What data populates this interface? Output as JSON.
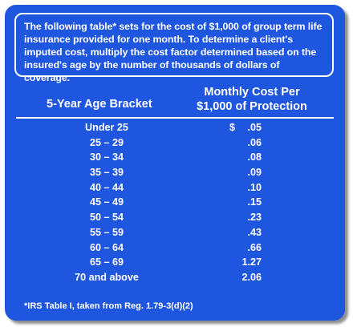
{
  "intro_text": "The following table* sets for the cost of $1,000 of group term life insurance provided for one month. To determine a client's imputed cost, multiply the cost factor determined based on the insured's age by the number of thousands of dollars of coverage.",
  "headers": {
    "age": "5-Year Age Bracket",
    "cost_line1": "Monthly Cost Per",
    "cost_line2": "$1,000 of Protection"
  },
  "currency_symbol": "$",
  "rows": [
    {
      "age": "Under 25",
      "cost": ".05"
    },
    {
      "age": "25 – 29",
      "cost": ".06"
    },
    {
      "age": "30 – 34",
      "cost": ".08"
    },
    {
      "age": "35 – 39",
      "cost": ".09"
    },
    {
      "age": "40 – 44",
      "cost": ".10"
    },
    {
      "age": "45 – 49",
      "cost": ".15"
    },
    {
      "age": "50 – 54",
      "cost": ".23"
    },
    {
      "age": "55 – 59",
      "cost": ".43"
    },
    {
      "age": "60 – 64",
      "cost": ".66"
    },
    {
      "age": "65 – 69",
      "cost": "1.27"
    },
    {
      "age": "70 and above",
      "cost": "2.06"
    }
  ],
  "footnote": "*IRS Table I, taken from Reg. 1.79-3(d)(2)",
  "colors": {
    "panel": "#1f56e0",
    "text": "#ffffff"
  }
}
